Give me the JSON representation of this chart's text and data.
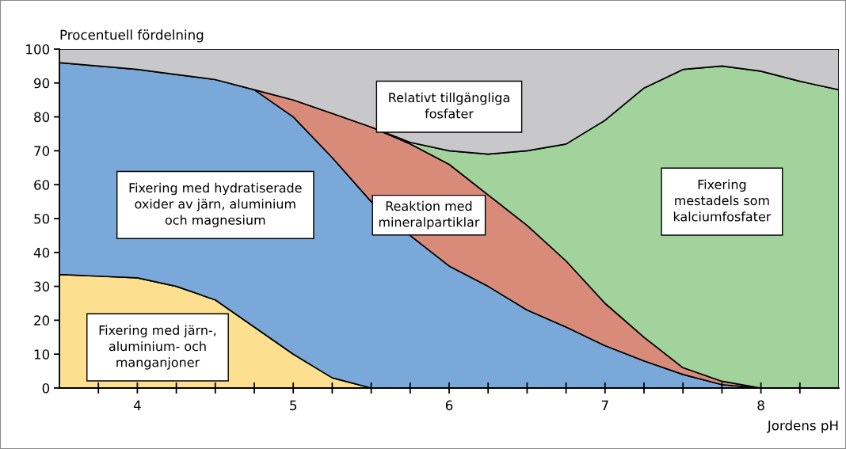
{
  "chart_data": {
    "type": "area",
    "stacked": true,
    "ylabel": "Procentuell fördelning",
    "xlabel": "Jordens pH",
    "x": [
      3.5,
      3.75,
      4,
      4.25,
      4.5,
      4.75,
      5,
      5.25,
      5.5,
      5.75,
      6,
      6.25,
      6.5,
      6.75,
      7,
      7.25,
      7.5,
      7.75,
      8,
      8.25,
      8.5
    ],
    "series": [
      {
        "color": "#fde08f",
        "values": [
          33.5,
          33,
          32.5,
          30,
          26,
          18,
          10,
          3,
          0,
          null,
          null,
          null,
          null,
          null,
          null,
          null,
          null,
          null,
          null,
          null,
          null
        ]
      },
      {
        "color": "#7aa9d9",
        "values": [
          62.5,
          62,
          61.5,
          62.5,
          65,
          70,
          70,
          65,
          55,
          45,
          36,
          30,
          23,
          18,
          12.5,
          8,
          4,
          1,
          0,
          null,
          null
        ]
      },
      {
        "color": "#d98b7a",
        "values": [
          null,
          null,
          null,
          null,
          null,
          0,
          5,
          13,
          22,
          27,
          30,
          27,
          25,
          19.5,
          12.5,
          7,
          2,
          1,
          0,
          null,
          null
        ]
      },
      {
        "color": "#a3d39c",
        "values": [
          null,
          null,
          null,
          null,
          null,
          null,
          null,
          null,
          0,
          0.5,
          4,
          12,
          22,
          34.5,
          54,
          73.5,
          88,
          93,
          93.5,
          90.5,
          88
        ]
      },
      {
        "color": "#c8c8ca",
        "values": [
          4,
          5,
          6,
          7.5,
          9,
          12,
          15,
          19,
          23,
          27.5,
          30,
          31,
          30,
          28,
          21,
          11.5,
          6,
          5,
          6.5,
          9.5,
          12
        ]
      }
    ],
    "xlim": [
      3.5,
      8.5
    ],
    "xticks": [
      {
        "value": 3.75,
        "label": null
      },
      4,
      {
        "value": 4.25,
        "label": null
      },
      {
        "value": 4.5,
        "label": null
      },
      {
        "value": 4.75,
        "label": null
      },
      5,
      {
        "value": 5.25,
        "label": null
      },
      {
        "value": 5.5,
        "label": null
      },
      {
        "value": 5.75,
        "label": null
      },
      6,
      {
        "value": 6.25,
        "label": null
      },
      {
        "value": 6.5,
        "label": null
      },
      {
        "value": 6.75,
        "label": null
      },
      7,
      {
        "value": 7.25,
        "label": null
      },
      {
        "value": 7.5,
        "label": null
      },
      {
        "value": 7.75,
        "label": null
      },
      8,
      {
        "value": 8.25,
        "label": null
      }
    ],
    "ylim": [
      0,
      100
    ],
    "yticks": [
      0,
      10,
      20,
      30,
      40,
      50,
      60,
      70,
      80,
      90,
      100
    ],
    "grid": false,
    "legend": false,
    "annotations": [
      "Relativt tillgängliga\nfosfater",
      "Fixering med hydratiserade\noxider av järn, aluminium\noch magnesium",
      "Reaktion med\nmineralpartiklar",
      "Fixering\nmestadels som\nkalciumfosfater",
      "Fixering med järn-,\naluminium- och\nmanganjoner"
    ]
  }
}
